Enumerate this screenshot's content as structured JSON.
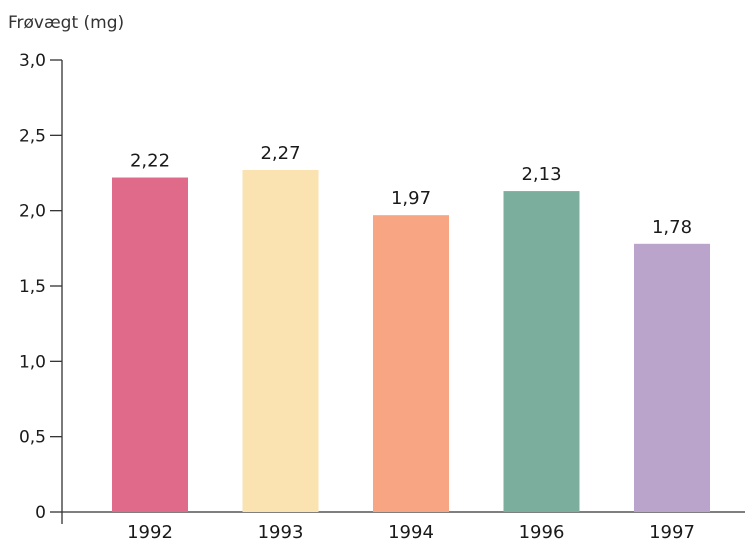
{
  "chart_data": {
    "type": "bar",
    "ylabel": "Frøvægt (mg)",
    "xlabel": "",
    "categories": [
      "1992",
      "1993",
      "1994",
      "1996",
      "1997"
    ],
    "values": [
      2.22,
      2.27,
      1.97,
      2.13,
      1.78
    ],
    "value_labels": [
      "2,22",
      "2,27",
      "1,97",
      "2,13",
      "1,78"
    ],
    "ylim": [
      0,
      3.0
    ],
    "yticks": [
      0,
      0.5,
      1.0,
      1.5,
      2.0,
      2.5,
      3.0
    ],
    "ytick_labels": [
      "0",
      "0,5",
      "1,0",
      "1,5",
      "2,0",
      "2,5",
      "3,0"
    ],
    "bar_colors": [
      "#df6a8a",
      "#fae3b0",
      "#f7a582",
      "#7cae9e",
      "#baa4cc"
    ],
    "grid": false,
    "legend": "none"
  }
}
